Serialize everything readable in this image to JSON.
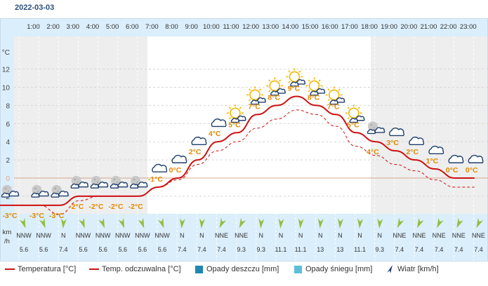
{
  "date": "2022-03-03",
  "chart_data": {
    "type": "line",
    "hours": [
      "1:00",
      "2:00",
      "3:00",
      "4:00",
      "5:00",
      "6:00",
      "7:00",
      "8:00",
      "9:00",
      "10:00",
      "11:00",
      "12:00",
      "13:00",
      "14:00",
      "15:00",
      "16:00",
      "17:00",
      "18:00",
      "19:00",
      "20:00",
      "21:00",
      "22:00",
      "23:00"
    ],
    "y_unit": "°C",
    "y_ticks": [
      12,
      10,
      8,
      6,
      4,
      2,
      0,
      -2
    ],
    "ylim": [
      -3.5,
      14.5
    ],
    "temperature": [
      -3,
      -3,
      -3,
      -2,
      -2,
      -2,
      -2,
      -1,
      0,
      2,
      4,
      5,
      7,
      8,
      9,
      8,
      7,
      5,
      4,
      3,
      2,
      1,
      0,
      0
    ],
    "feels_like": [
      -3,
      -3,
      -4,
      -2.5,
      -2,
      -2,
      -2,
      -1,
      -0.2,
      1.5,
      3,
      4,
      5.5,
      6.5,
      7.5,
      7,
      5.7,
      3.5,
      2.5,
      1.5,
      0.8,
      -0.2,
      -1,
      -1
    ],
    "temp_labels": [
      "-3°C",
      "-3°C",
      "-3°C",
      "-2°C",
      "-2°C",
      "-2°C",
      "-2°C",
      "-1°C",
      "0°C",
      "2°C",
      "4°C",
      "5°C",
      "7°C",
      "8°C",
      "9°C",
      "8°C",
      "7°C",
      "5°C",
      "4°C",
      "3°C",
      "2°C",
      "1°C",
      "0°C",
      "0°C"
    ],
    "icons": [
      "night-cloudy",
      "night-cloudy",
      "night-cloudy",
      "night-cloudy",
      "night-cloudy",
      "night-cloudy",
      "night-cloudy",
      "cloudy",
      "cloudy",
      "cloudy",
      "cloudy",
      "partly-sunny",
      "partly-sunny",
      "partly-sunny",
      "partly-sunny",
      "partly-sunny",
      "partly-sunny",
      "partly-sunny",
      "night-cloudy",
      "cloudy",
      "cloudy",
      "cloudy",
      "cloudy",
      "cloudy"
    ],
    "wind_unit": "km\n/h",
    "wind_dir": [
      "NNW",
      "NNW",
      "N",
      "NNW",
      "NNW",
      "NNW",
      "NNW",
      "NNW",
      "N",
      "N",
      "NNE",
      "NNE",
      "N",
      "N",
      "N",
      "N",
      "N",
      "N",
      "N",
      "NNE",
      "NNE",
      "NNE",
      "NNE",
      "NNE"
    ],
    "wind_speed": [
      "5.6",
      "5.6",
      "7.4",
      "5.6",
      "5.6",
      "5.6",
      "5.6",
      "5.6",
      "7.4",
      "7.4",
      "7.4",
      "9.3",
      "9.3",
      "11.1",
      "11.1",
      "13",
      "13",
      "11.1",
      "9.3",
      "7.4",
      "7.4",
      "7.4",
      "7.4",
      "7.4"
    ],
    "wind_deg": [
      340,
      340,
      5,
      340,
      340,
      340,
      340,
      340,
      5,
      5,
      25,
      25,
      5,
      5,
      5,
      5,
      5,
      5,
      5,
      25,
      25,
      25,
      25,
      25
    ],
    "legend": [
      "Temperatura [°C]",
      "Temp. odczuwalna [°C]",
      "Opady deszczu [mm]",
      "Opady śniegu [mm]",
      "Wiatr [km/h]"
    ],
    "colors": {
      "temperature": "#cc1111",
      "feels_like": "#cc1111",
      "rain": "#1e88b0",
      "snow": "#5bc0d6",
      "wind": "#1c3f7a",
      "labels": "#e08a00",
      "night_shade": "#eeeeee",
      "axis_panel": "#dbeefb"
    }
  }
}
